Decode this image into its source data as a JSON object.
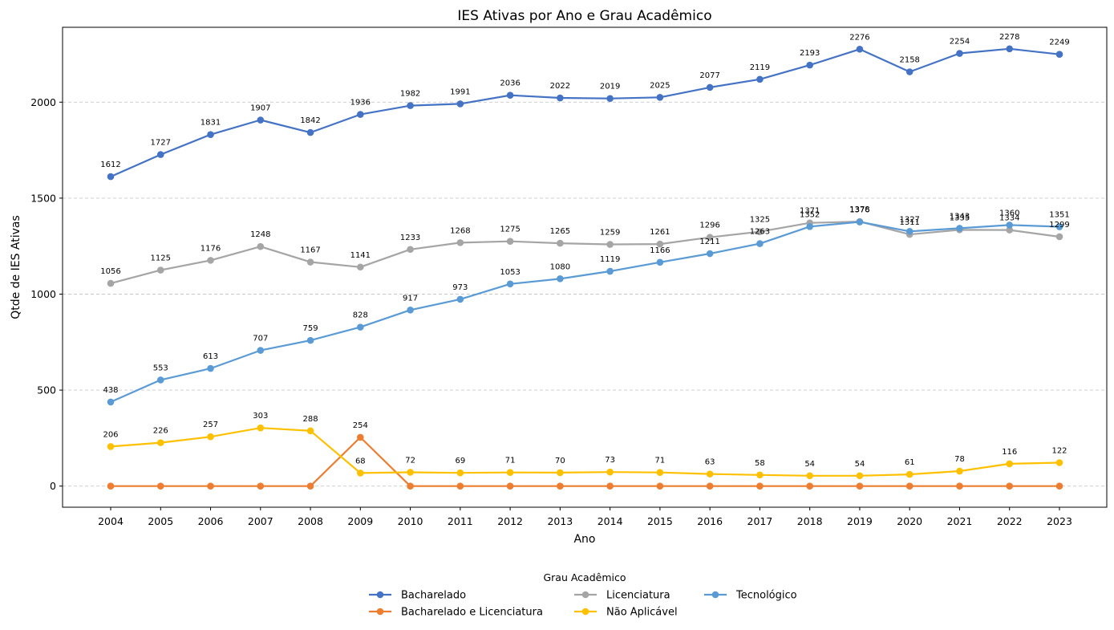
{
  "chart_data": {
    "type": "line",
    "title": "IES Ativas por Ano e Grau Acadêmico",
    "xlabel": "Ano",
    "ylabel": "Qtde de IES Ativas",
    "x": [
      "2004",
      "2005",
      "2006",
      "2007",
      "2008",
      "2009",
      "2010",
      "2011",
      "2012",
      "2013",
      "2014",
      "2015",
      "2016",
      "2017",
      "2018",
      "2019",
      "2020",
      "2021",
      "2022",
      "2023"
    ],
    "ylim": [
      -110,
      2390
    ],
    "yticks": [
      0,
      500,
      1000,
      1500,
      2000
    ],
    "grid": "horizontal dashed",
    "legend": {
      "title": "Grau Acadêmico",
      "placement": "bottom-center"
    },
    "series": [
      {
        "name": "Bacharelado",
        "color": "#4472C4",
        "show_labels": true,
        "values": [
          1612,
          1727,
          1831,
          1907,
          1842,
          1936,
          1982,
          1991,
          2036,
          2022,
          2019,
          2025,
          2077,
          2119,
          2193,
          2276,
          2158,
          2254,
          2278,
          2249
        ]
      },
      {
        "name": "Bacharelado e Licenciatura",
        "color": "#ED7D31",
        "show_labels": false,
        "values": [
          0,
          0,
          0,
          0,
          0,
          254,
          0,
          0,
          0,
          0,
          0,
          0,
          0,
          0,
          0,
          0,
          0,
          0,
          0,
          0
        ]
      },
      {
        "name": "Licenciatura",
        "color": "#A5A5A5",
        "show_labels": true,
        "values": [
          1056,
          1125,
          1176,
          1248,
          1167,
          1141,
          1233,
          1268,
          1275,
          1265,
          1259,
          1261,
          1296,
          1325,
          1371,
          1378,
          1311,
          1335,
          1334,
          1299
        ]
      },
      {
        "name": "Não Aplicável",
        "color": "#FFC000",
        "show_labels": true,
        "values": [
          206,
          226,
          257,
          303,
          288,
          68,
          72,
          69,
          71,
          70,
          73,
          71,
          63,
          58,
          54,
          54,
          61,
          78,
          116,
          122
        ]
      },
      {
        "name": "Tecnológico",
        "color": "#5B9BD5",
        "show_labels": true,
        "values": [
          438,
          553,
          613,
          707,
          759,
          828,
          917,
          973,
          1053,
          1080,
          1119,
          1166,
          1211,
          1263,
          1352,
          1376,
          1327,
          1343,
          1360,
          1351
        ]
      }
    ],
    "extra_labels": [
      {
        "series": "Bacharelado e Licenciatura",
        "x": "2009",
        "value": 254
      }
    ]
  }
}
